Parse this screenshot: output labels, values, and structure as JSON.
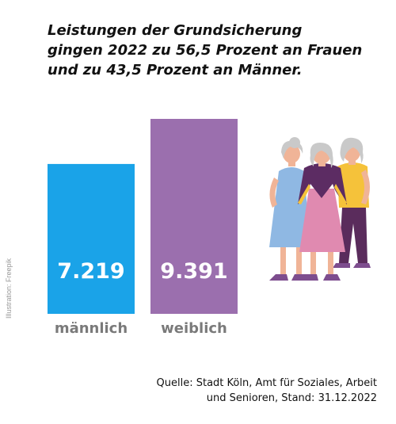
{
  "title_lines": [
    "Leistungen der Grundsicherung",
    "gingen 2022 zu 56,5 Prozent an Frauen",
    "und zu 43,5 Prozent an Männer."
  ],
  "credit": "Illustration: Freepik",
  "source_lines": [
    "Quelle: Stadt Köln, Amt für Soziales, Arbeit",
    "und Senioren, Stand: 31.12.2022"
  ],
  "chart_data": {
    "type": "bar",
    "categories": [
      "männlich",
      "weiblich"
    ],
    "values": [
      7219,
      9391
    ],
    "value_labels": [
      "7.219",
      "9.391"
    ],
    "colors": [
      "#1aa3e8",
      "#9b6fae"
    ],
    "ylim": [
      0,
      9391
    ],
    "grid": false,
    "legend": "none"
  },
  "illustration": {
    "name": "group-of-elderly-women-illustration",
    "colors": {
      "dress_blue": "#8fb8e3",
      "dress_pink": "#e08ab0",
      "top_yellow": "#f5c23a",
      "pants_purple": "#5a2c5c",
      "shawl": "#5c2c63",
      "hair": "#c9c9c9",
      "skin": "#f0b497",
      "shoes": "#7d4d8e"
    }
  }
}
